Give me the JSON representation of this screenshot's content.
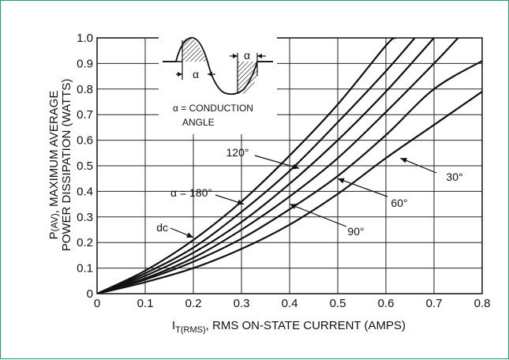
{
  "chart_data": {
    "type": "line",
    "xlabel": "I_T(RMS), RMS ON-STATE CURRENT (AMPS)",
    "xlabel_main": "I",
    "xlabel_sub": "T(RMS)",
    "xlabel_rest": ", RMS ON-STATE CURRENT (AMPS)",
    "ylabel_line1_main": "P",
    "ylabel_line1_sub": "(AV)",
    "ylabel_line1_rest": ", MAXIMUM AVERAGE",
    "ylabel_line2": "POWER DISSIPATION (WATTS)",
    "xlim": [
      0,
      0.8
    ],
    "ylim": [
      0,
      1.0
    ],
    "x_ticks": [
      "0",
      "0.1",
      "0.2",
      "0.3",
      "0.4",
      "0.5",
      "0.6",
      "0.7",
      "0.8"
    ],
    "y_ticks": [
      "0",
      "0.1",
      "0.2",
      "0.3",
      "0.4",
      "0.5",
      "0.6",
      "0.7",
      "0.8",
      "0.9",
      "1.0"
    ],
    "grid": true,
    "series": [
      {
        "name": "dc",
        "points": [
          [
            0,
            0
          ],
          [
            0.1,
            0.09
          ],
          [
            0.2,
            0.21
          ],
          [
            0.3,
            0.36
          ],
          [
            0.4,
            0.54
          ],
          [
            0.5,
            0.74
          ],
          [
            0.6,
            0.97
          ],
          [
            0.62,
            1.0
          ]
        ]
      },
      {
        "name": "α = 180°",
        "points": [
          [
            0,
            0
          ],
          [
            0.1,
            0.08
          ],
          [
            0.2,
            0.18
          ],
          [
            0.3,
            0.32
          ],
          [
            0.4,
            0.48
          ],
          [
            0.5,
            0.67
          ],
          [
            0.6,
            0.87
          ],
          [
            0.66,
            1.0
          ]
        ]
      },
      {
        "name": "120°",
        "points": [
          [
            0,
            0
          ],
          [
            0.1,
            0.07
          ],
          [
            0.2,
            0.16
          ],
          [
            0.3,
            0.28
          ],
          [
            0.4,
            0.43
          ],
          [
            0.5,
            0.6
          ],
          [
            0.6,
            0.79
          ],
          [
            0.7,
            1.0
          ]
        ]
      },
      {
        "name": "90°",
        "points": [
          [
            0,
            0
          ],
          [
            0.1,
            0.06
          ],
          [
            0.2,
            0.14
          ],
          [
            0.3,
            0.25
          ],
          [
            0.4,
            0.38
          ],
          [
            0.5,
            0.53
          ],
          [
            0.6,
            0.71
          ],
          [
            0.7,
            0.9
          ],
          [
            0.75,
            1.0
          ]
        ]
      },
      {
        "name": "60°",
        "points": [
          [
            0,
            0
          ],
          [
            0.1,
            0.055
          ],
          [
            0.2,
            0.125
          ],
          [
            0.3,
            0.215
          ],
          [
            0.4,
            0.33
          ],
          [
            0.5,
            0.46
          ],
          [
            0.6,
            0.62
          ],
          [
            0.7,
            0.8
          ],
          [
            0.8,
            0.91
          ]
        ]
      },
      {
        "name": "30°",
        "points": [
          [
            0,
            0
          ],
          [
            0.1,
            0.045
          ],
          [
            0.2,
            0.1
          ],
          [
            0.3,
            0.175
          ],
          [
            0.4,
            0.27
          ],
          [
            0.5,
            0.39
          ],
          [
            0.6,
            0.53
          ],
          [
            0.7,
            0.66
          ],
          [
            0.8,
            0.79
          ]
        ]
      }
    ],
    "annotations": [
      {
        "text": "dc",
        "series": "dc",
        "at": [
          0.2,
          0.22
        ]
      },
      {
        "text": "α = 180°",
        "series": "α = 180°",
        "at": [
          0.305,
          0.35
        ]
      },
      {
        "text": "120°",
        "series": "120°",
        "at": [
          0.42,
          0.49
        ]
      },
      {
        "text": "90°",
        "series": "90°",
        "at": [
          0.4,
          0.35
        ]
      },
      {
        "text": "60°",
        "series": "60°",
        "at": [
          0.5,
          0.45
        ]
      },
      {
        "text": "30°",
        "series": "30°",
        "at": [
          0.63,
          0.53
        ]
      }
    ],
    "inset": {
      "alpha_symbol": "α",
      "caption_line1": "α = CONDUCTION",
      "caption_line2": "ANGLE"
    }
  }
}
